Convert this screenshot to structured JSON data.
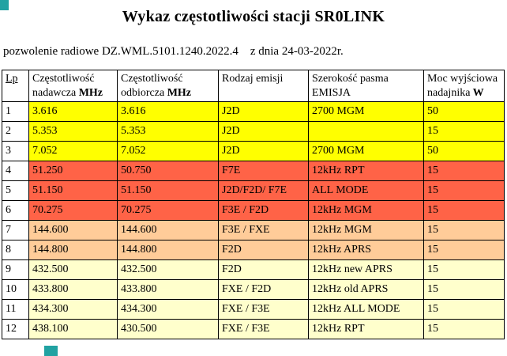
{
  "page": {
    "title": "Wykaz częstotliwości stacji SR0LINK",
    "permit_line": "pozwolenie radiowe DZ.WML.5101.1240.2022.4    z dnia 24-03-2022r."
  },
  "colors": {
    "yellow": "#ffff00",
    "tomato": "#ff6347",
    "peach": "#ffcc99",
    "pale_yellow": "#ffffcc",
    "marker_teal": "#21a2a2",
    "border": "#000000"
  },
  "table": {
    "columns": [
      {
        "text": "Lp",
        "unit": "",
        "underline": true
      },
      {
        "text": "Częstotliwość nadawcza",
        "unit": "MHz",
        "underline": false
      },
      {
        "text": "Częstotliwość odbiorcza",
        "unit": "MHz",
        "underline": false
      },
      {
        "text": "Rodzaj emisji",
        "unit": "",
        "underline": false
      },
      {
        "text": "Szerokość pasma EMISJA",
        "unit": "",
        "underline": false
      },
      {
        "text": "Moc wyjściowa nadajnika",
        "unit": "W",
        "underline": false
      }
    ],
    "rows": [
      {
        "lp": "1",
        "tx": "3.616",
        "rx": "3.616",
        "emission": "J2D",
        "bandwidth": "2700 MGM",
        "power": "50",
        "color": "yellow"
      },
      {
        "lp": "2",
        "tx": "5.353",
        "rx": "5.353",
        "emission": "J2D",
        "bandwidth": "",
        "power": "15",
        "color": "yellow"
      },
      {
        "lp": "3",
        "tx": "7.052",
        "rx": "7.052",
        "emission": "J2D",
        "bandwidth": "2700 MGM",
        "power": "50",
        "color": "yellow"
      },
      {
        "lp": "4",
        "tx": "51.250",
        "rx": "50.750",
        "emission": "F7E",
        "bandwidth": "12kHz RPT",
        "power": "15",
        "color": "tomato"
      },
      {
        "lp": "5",
        "tx": "51.150",
        "rx": "51.150",
        "emission": "J2D/F2D/ F7E",
        "bandwidth": "ALL MODE",
        "power": "15",
        "color": "tomato"
      },
      {
        "lp": "6",
        "tx": "70.275",
        "rx": "70.275",
        "emission": "F3E / F2D",
        "bandwidth": "12kHz MGM",
        "power": "15",
        "color": "tomato"
      },
      {
        "lp": "7",
        "tx": "144.600",
        "rx": "144.600",
        "emission": "F3E / FXE",
        "bandwidth": "12kHz MGM",
        "power": "15",
        "color": "peach"
      },
      {
        "lp": "8",
        "tx": "144.800",
        "rx": "144.800",
        "emission": "F2D",
        "bandwidth": "12kHz APRS",
        "power": "15",
        "color": "peach"
      },
      {
        "lp": "9",
        "tx": "432.500",
        "rx": "432.500",
        "emission": "F2D",
        "bandwidth": "12kHz new APRS",
        "power": "15",
        "color": "pale_yellow"
      },
      {
        "lp": "10",
        "tx": "433.800",
        "rx": "433.800",
        "emission": "FXE / F2D",
        "bandwidth": "12kHz old APRS",
        "power": "15",
        "color": "pale_yellow"
      },
      {
        "lp": "11",
        "tx": "434.300",
        "rx": "434.300",
        "emission": "FXE / F3E",
        "bandwidth": "12kHz ALL MODE",
        "power": "15",
        "color": "pale_yellow"
      },
      {
        "lp": "12",
        "tx": "438.100",
        "rx": "430.500",
        "emission": "FXE / F3E",
        "bandwidth": "12kHz RPT",
        "power": "15",
        "color": "pale_yellow"
      }
    ]
  }
}
